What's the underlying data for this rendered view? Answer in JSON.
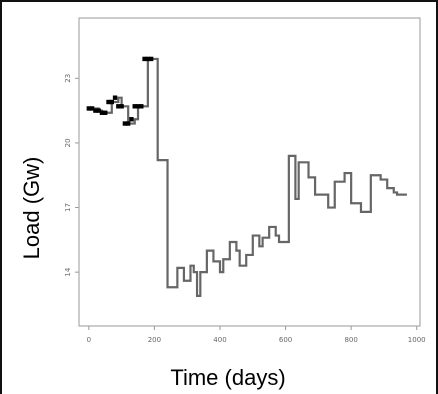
{
  "chart_data": {
    "type": "line",
    "xlabel": "Time (days)",
    "ylabel": "Load (Gw)",
    "xlim": [
      -30,
      1010
    ],
    "ylim": [
      11.5,
      25.8
    ],
    "x_ticks": [
      0,
      200,
      400,
      600,
      800,
      1000
    ],
    "x_tick_labels": [
      "0",
      "200",
      "400",
      "600",
      "800",
      "1000"
    ],
    "y_ticks": [
      14,
      17,
      20,
      23
    ],
    "y_tick_labels": [
      "14",
      "17",
      "20",
      "23"
    ],
    "grid": false,
    "legend": "none",
    "series": [
      {
        "style": "step",
        "color": "#666666",
        "x": [
          0,
          10,
          20,
          30,
          40,
          50,
          60,
          70,
          80,
          90,
          100,
          110,
          120,
          130,
          140,
          150,
          160,
          170,
          180,
          190,
          200,
          210,
          220,
          230,
          240,
          250,
          260,
          270,
          280,
          290,
          300,
          310,
          320,
          330,
          340,
          350,
          360,
          370,
          380,
          390,
          400,
          410,
          420,
          430,
          440,
          450,
          460,
          470,
          480,
          490,
          500,
          510,
          520,
          530,
          540,
          550,
          560,
          570,
          580,
          590,
          600,
          610,
          620,
          630,
          640,
          650,
          660,
          670,
          680,
          690,
          700,
          710,
          720,
          730,
          740,
          750,
          760,
          770,
          780,
          790,
          800,
          810,
          820,
          830,
          840,
          850,
          860,
          870,
          880,
          890,
          900,
          910,
          920,
          930,
          940,
          950,
          960
        ],
        "y": [
          21.6,
          21.6,
          21.6,
          21.5,
          21.4,
          21.4,
          21.4,
          21.9,
          21.9,
          22.1,
          21.7,
          21.7,
          20.9,
          20.9,
          21.1,
          21.7,
          21.7,
          21.7,
          23.9,
          23.9,
          23.9,
          19.2,
          19.2,
          19.2,
          13.3,
          13.3,
          13.3,
          14.2,
          14.2,
          13.6,
          13.6,
          14.3,
          14.0,
          12.9,
          14.0,
          14.0,
          15.0,
          15.0,
          14.5,
          14.5,
          14.0,
          14.6,
          14.6,
          15.4,
          15.4,
          15.0,
          14.3,
          14.3,
          14.8,
          14.8,
          15.7,
          15.7,
          15.2,
          15.6,
          15.6,
          16.1,
          16.1,
          15.7,
          15.4,
          15.4,
          15.4,
          19.4,
          19.4,
          17.4,
          19.1,
          19.1,
          19.1,
          18.4,
          18.4,
          17.6,
          17.6,
          17.6,
          17.6,
          17.0,
          17.0,
          18.2,
          18.2,
          18.2,
          18.6,
          18.6,
          17.2,
          17.2,
          17.2,
          16.8,
          16.8,
          16.8,
          18.5,
          18.5,
          18.5,
          18.3,
          18.3,
          17.9,
          17.9,
          17.7,
          17.6,
          17.6,
          17.6
        ]
      },
      {
        "style": "markers",
        "color": "#000000",
        "x": [
          0,
          10,
          20,
          30,
          40,
          50,
          60,
          70,
          80,
          90,
          100,
          110,
          120,
          130,
          140,
          150,
          160,
          170,
          180,
          190
        ],
        "y": [
          21.6,
          21.6,
          21.5,
          21.5,
          21.4,
          21.4,
          21.9,
          21.9,
          22.1,
          21.7,
          21.7,
          20.9,
          20.9,
          21.1,
          21.7,
          21.7,
          21.7,
          23.9,
          23.9,
          23.9
        ]
      }
    ]
  }
}
